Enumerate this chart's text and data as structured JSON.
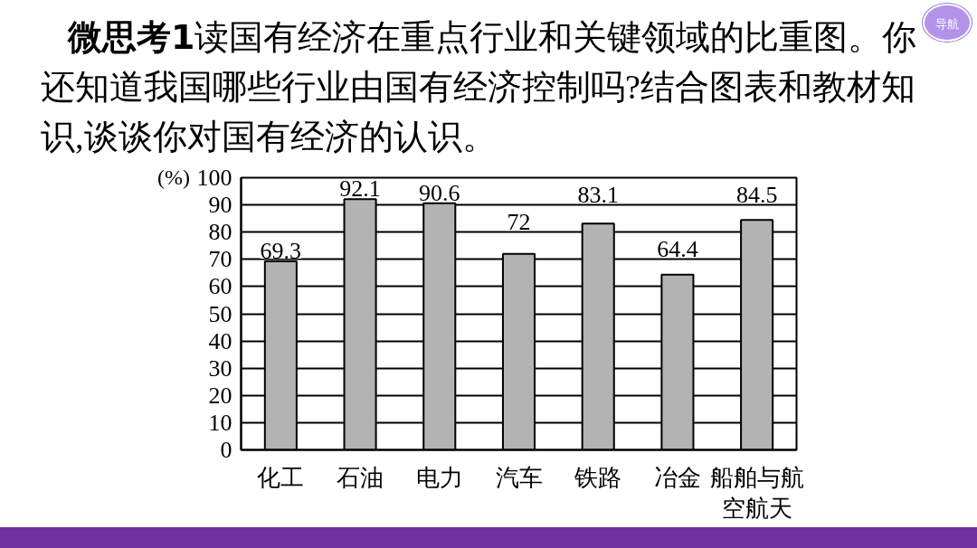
{
  "chart_data": {
    "type": "bar",
    "title": "微思考1",
    "subtitle": "读国有经济在重点行业和关键领域的比重图。你还知道我国哪些行业由国有经济控制吗?结合图表和教材知识,谈谈你对国有经济的认识。",
    "ylabel": "(%)",
    "categories": [
      "化工",
      "石油",
      "电力",
      "汽车",
      "铁路",
      "冶金",
      "船舶与航空航天"
    ],
    "values": [
      69.3,
      92.1,
      90.6,
      72,
      83.1,
      64.4,
      84.5
    ],
    "color": "#b3b3b3",
    "ylim": [
      0,
      100
    ],
    "yticks": [
      0,
      10,
      20,
      30,
      40,
      50,
      60,
      70,
      80,
      90,
      100
    ],
    "grid": "y",
    "data_labels": true,
    "annotations": [
      "导航"
    ]
  }
}
